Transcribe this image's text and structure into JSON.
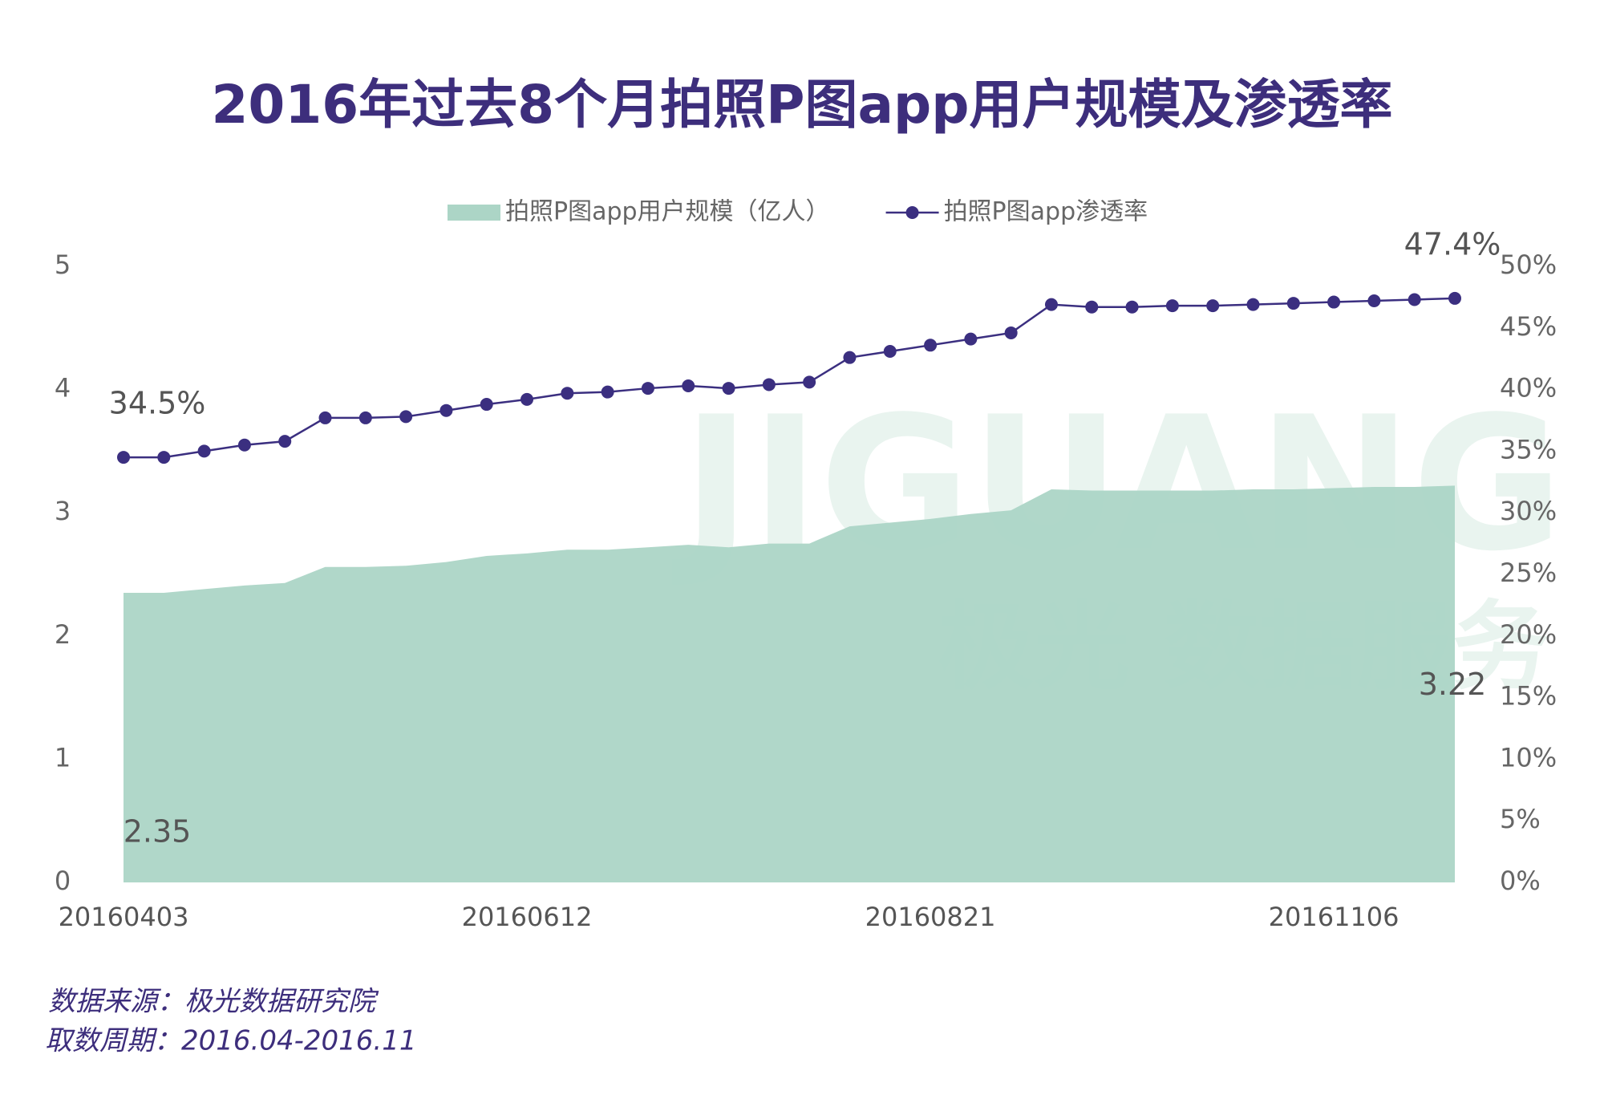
{
  "chart_data": {
    "type": "area-line",
    "title": "2016年过去8个月拍照P图app用户规模及渗透率",
    "categories": [
      "20160403",
      null,
      null,
      null,
      null,
      null,
      null,
      null,
      null,
      null,
      "20160612",
      null,
      null,
      null,
      null,
      null,
      null,
      null,
      null,
      null,
      "20160821",
      null,
      null,
      null,
      null,
      null,
      null,
      null,
      null,
      null,
      "20161106",
      null,
      null,
      null
    ],
    "series": [
      {
        "name": "拍照P图app用户规模（亿人）",
        "type": "area",
        "color": "#acd5c6",
        "values": [
          2.35,
          2.35,
          2.38,
          2.41,
          2.43,
          2.56,
          2.56,
          2.57,
          2.6,
          2.65,
          2.67,
          2.7,
          2.7,
          2.72,
          2.74,
          2.72,
          2.75,
          2.75,
          2.89,
          2.92,
          2.95,
          2.99,
          3.02,
          3.19,
          3.18,
          3.18,
          3.18,
          3.18,
          3.19,
          3.19,
          3.2,
          3.21,
          3.21,
          3.22
        ],
        "value_labels": [
          "2.35",
          null,
          null,
          null,
          null,
          null,
          null,
          null,
          null,
          null,
          null,
          null,
          null,
          null,
          null,
          null,
          null,
          null,
          null,
          null,
          null,
          null,
          null,
          null,
          null,
          null,
          null,
          null,
          null,
          null,
          null,
          null,
          null,
          "3.22"
        ]
      },
      {
        "name": "拍照P图app渗透率",
        "type": "line",
        "axis": "y2",
        "color": "#3b2f80",
        "values": [
          34.5,
          34.5,
          35.0,
          35.5,
          35.8,
          37.7,
          37.7,
          37.8,
          38.3,
          38.8,
          39.2,
          39.7,
          39.8,
          40.1,
          40.3,
          40.1,
          40.4,
          40.6,
          42.6,
          43.1,
          43.6,
          44.1,
          44.6,
          46.9,
          46.7,
          46.7,
          46.8,
          46.8,
          46.9,
          47.0,
          47.1,
          47.2,
          47.3,
          47.4
        ],
        "value_labels": [
          "34.5%",
          null,
          null,
          null,
          null,
          null,
          null,
          null,
          null,
          null,
          null,
          null,
          null,
          null,
          null,
          null,
          null,
          null,
          null,
          null,
          null,
          null,
          null,
          null,
          null,
          null,
          null,
          null,
          null,
          null,
          null,
          null,
          null,
          "47.4%"
        ]
      }
    ],
    "ylim": [
      0,
      5
    ],
    "yticks": [
      0,
      1,
      2,
      3,
      4,
      5
    ],
    "y2lim": [
      0,
      50
    ],
    "y2ticks": [
      {
        "value": 0,
        "label": "0%"
      },
      {
        "value": 5,
        "label": "5%"
      },
      {
        "value": 10,
        "label": "10%"
      },
      {
        "value": 15,
        "label": "15%"
      },
      {
        "value": 20,
        "label": "20%"
      },
      {
        "value": 25,
        "label": "25%"
      },
      {
        "value": 30,
        "label": "30%"
      },
      {
        "value": 35,
        "label": "35%"
      },
      {
        "value": 40,
        "label": "40%"
      },
      {
        "value": 45,
        "label": "45%"
      },
      {
        "value": 50,
        "label": "50%"
      }
    ],
    "legend": "top",
    "watermark": [
      "JIGUANG",
      "极光 数据服务"
    ],
    "notes": [
      "数据来源：极光数据研究院",
      "取数周期：2016.04-2016.11"
    ]
  }
}
